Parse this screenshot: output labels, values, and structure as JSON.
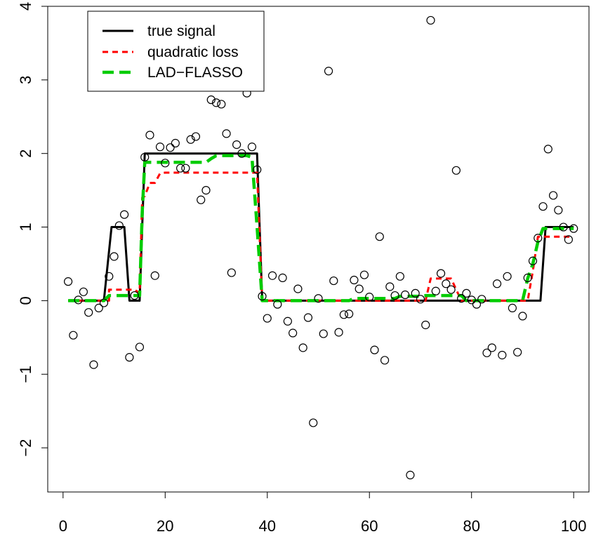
{
  "chart_data": {
    "type": "scatter",
    "title": "",
    "xlabel": "",
    "ylabel": "",
    "xlim": [
      -3,
      103
    ],
    "ylim": [
      -2.6,
      4.0
    ],
    "x_ticks": [
      0,
      20,
      40,
      60,
      80,
      100
    ],
    "y_ticks": [
      -2,
      -1,
      0,
      1,
      2,
      3,
      4
    ],
    "x_tick_labels": [
      "0",
      "20",
      "40",
      "60",
      "80",
      "100"
    ],
    "y_tick_labels": [
      "−2",
      "−1",
      "0",
      "1",
      "2",
      "3",
      "4"
    ],
    "legend_position": "top-left",
    "points": {
      "x": [
        1,
        2,
        3,
        4,
        5,
        6,
        7,
        8,
        9,
        10,
        11,
        12,
        13,
        14,
        15,
        16,
        17,
        18,
        19,
        20,
        21,
        22,
        23,
        24,
        25,
        26,
        27,
        28,
        29,
        30,
        31,
        32,
        33,
        34,
        35,
        36,
        37,
        38,
        39,
        40,
        41,
        42,
        43,
        44,
        45,
        46,
        47,
        48,
        49,
        50,
        51,
        52,
        53,
        54,
        55,
        56,
        57,
        58,
        59,
        60,
        61,
        62,
        63,
        64,
        65,
        66,
        67,
        68,
        69,
        70,
        71,
        72,
        73,
        74,
        75,
        76,
        77,
        78,
        79,
        80,
        81,
        82,
        83,
        84,
        85,
        86,
        87,
        88,
        89,
        90,
        91,
        92,
        93,
        94,
        95,
        96,
        97,
        98,
        99,
        100
      ],
      "y": [
        0.26,
        -0.47,
        0.01,
        0.12,
        -0.16,
        -0.87,
        -0.1,
        -0.03,
        0.33,
        0.6,
        1.02,
        1.17,
        -0.77,
        0.07,
        -0.63,
        1.95,
        2.25,
        0.34,
        2.09,
        1.87,
        2.08,
        2.14,
        1.8,
        1.8,
        2.19,
        2.23,
        1.37,
        1.5,
        2.73,
        2.69,
        2.67,
        2.27,
        0.38,
        2.12,
        2.0,
        2.82,
        2.09,
        1.78,
        0.06,
        -0.24,
        0.34,
        -0.05,
        0.31,
        -0.28,
        -0.44,
        0.16,
        -0.64,
        -0.23,
        -1.66,
        0.03,
        -0.45,
        3.12,
        0.27,
        -0.43,
        -0.19,
        -0.18,
        0.28,
        0.16,
        0.35,
        0.05,
        -0.67,
        0.87,
        -0.81,
        0.19,
        0.07,
        0.33,
        0.08,
        -2.37,
        0.1,
        0.02,
        -0.33,
        3.81,
        0.13,
        0.37,
        0.23,
        0.15,
        1.77,
        0.03,
        0.1,
        0.01,
        -0.05,
        0.02,
        -0.71,
        -0.64,
        0.23,
        -0.74,
        0.33,
        -0.1,
        -0.7,
        -0.21,
        0.31,
        0.54,
        0.85,
        1.28,
        2.06,
        1.43,
        1.23,
        1.0,
        0.83,
        0.98
      ]
    },
    "series": [
      {
        "name": "true signal",
        "color": "#000000",
        "dash": "solid",
        "x": [
          1,
          8,
          9.5,
          12,
          13,
          15,
          16,
          38,
          39,
          93.5,
          94.5,
          100
        ],
        "y": [
          0,
          0,
          1,
          1,
          0,
          0,
          2,
          2,
          0,
          0,
          1,
          1
        ]
      },
      {
        "name": "quadratic loss",
        "color": "#ff0000",
        "dash": "short-dash",
        "x": [
          1,
          8,
          9,
          9,
          14,
          15,
          15.5,
          16,
          17,
          18,
          19,
          20,
          38,
          39,
          71,
          72,
          72,
          74,
          75,
          76,
          78,
          91,
          92,
          93,
          94,
          100
        ],
        "y": [
          0,
          0,
          0,
          0.15,
          0.15,
          0.1,
          1.4,
          1.42,
          1.6,
          1.6,
          1.73,
          1.74,
          1.74,
          0,
          0,
          0.3,
          0.3,
          0.3,
          0.3,
          0.3,
          0,
          0,
          0.4,
          0.87,
          0.87,
          0.87
        ]
      },
      {
        "name": "LAD−FLASSO",
        "color": "#00cc00",
        "dash": "long-dash",
        "x": [
          1,
          8,
          9,
          15,
          15.5,
          16,
          28,
          29,
          30,
          31,
          32,
          36,
          37,
          38,
          39,
          56,
          57,
          65,
          66,
          70,
          71,
          78,
          79,
          90,
          91,
          92,
          93,
          94,
          100
        ],
        "y": [
          0,
          0,
          0.07,
          0.07,
          1.2,
          1.88,
          1.88,
          1.93,
          1.97,
          1.97,
          1.97,
          1.97,
          1.95,
          1.0,
          0,
          0,
          0.03,
          0.03,
          0.06,
          0.06,
          0.07,
          0.07,
          0,
          0,
          0.3,
          0.5,
          0.8,
          0.98,
          0.98
        ]
      }
    ]
  }
}
